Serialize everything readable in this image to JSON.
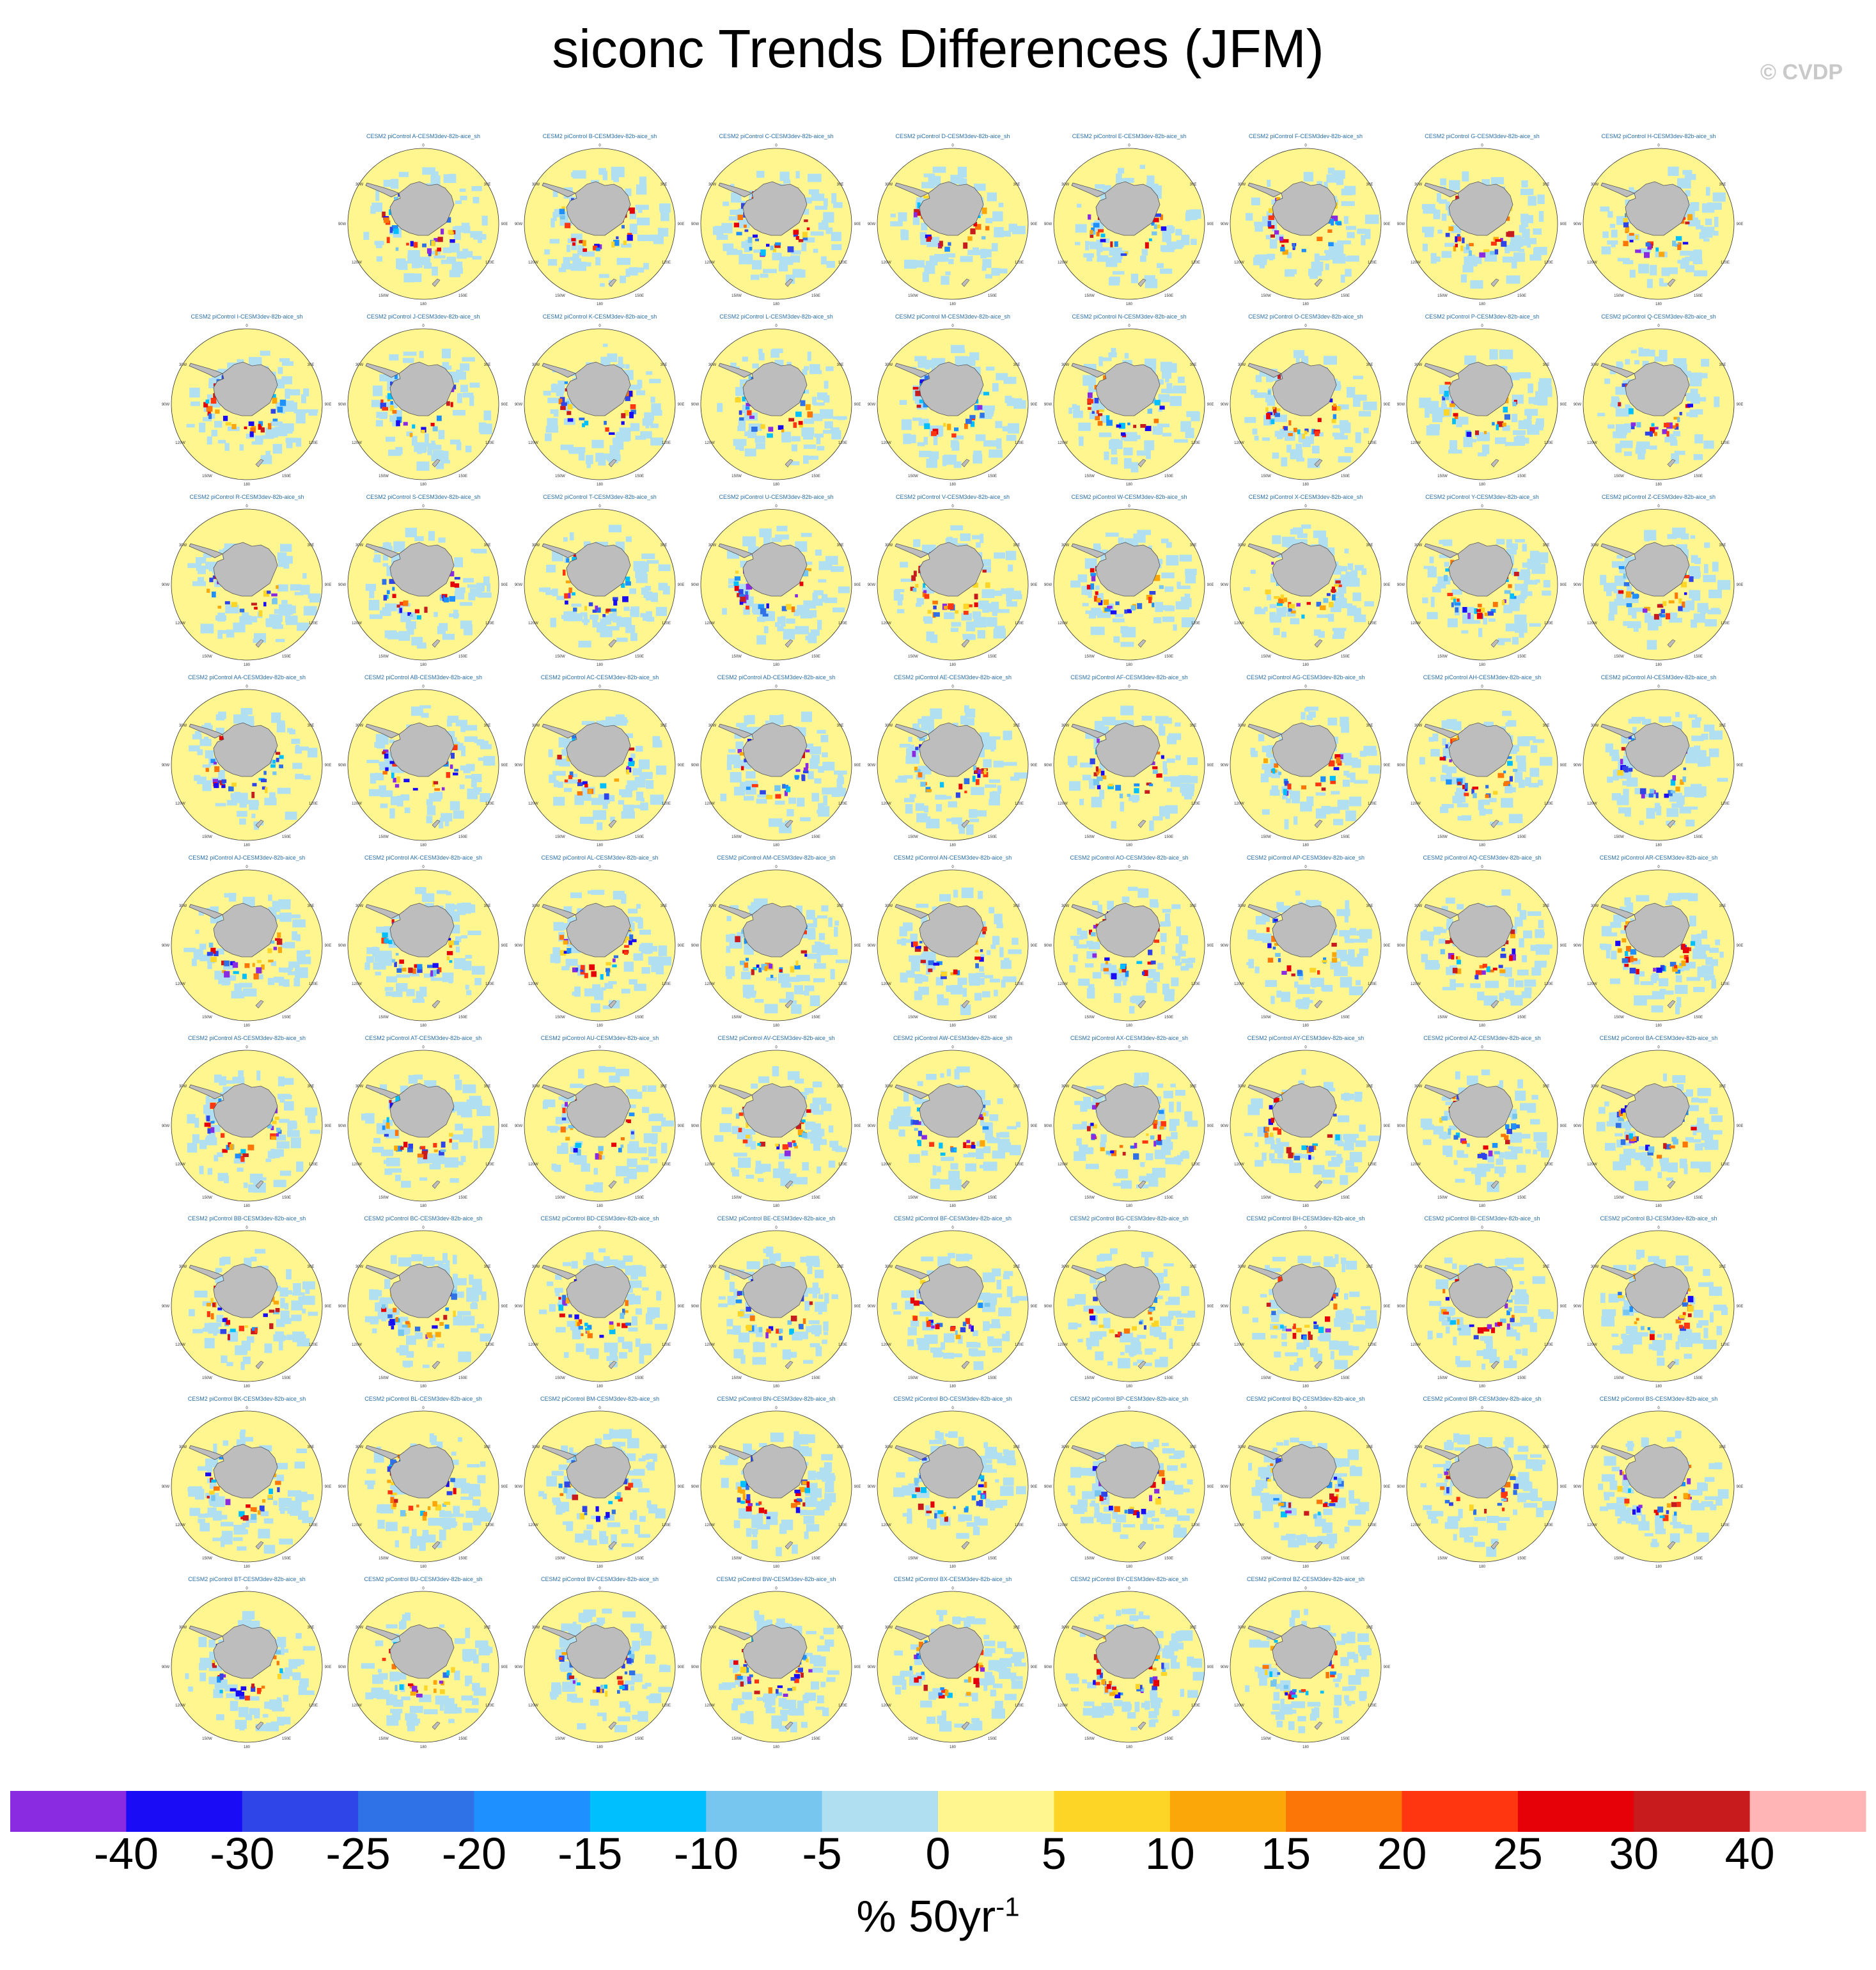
{
  "title": "siconc Trends Differences (JFM)",
  "credit": "© CVDP",
  "panel_title_prefix": "CESM2 piControl ",
  "panel_title_suffix": "-CESM3dev-82b-aice_sh",
  "panel_rows": [
    [
      "A",
      "B",
      "C",
      "D",
      "E",
      "F",
      "G",
      "H"
    ],
    [
      "I",
      "J",
      "K",
      "L",
      "M",
      "N",
      "O",
      "P",
      "Q"
    ],
    [
      "R",
      "S",
      "T",
      "U",
      "V",
      "W",
      "X",
      "Y",
      "Z"
    ],
    [
      "AA",
      "AB",
      "AC",
      "AD",
      "AE",
      "AF",
      "AG",
      "AH",
      "AI"
    ],
    [
      "AJ",
      "AK",
      "AL",
      "AM",
      "AN",
      "AO",
      "AP",
      "AQ",
      "AR"
    ],
    [
      "AS",
      "AT",
      "AU",
      "AV",
      "AW",
      "AX",
      "AY",
      "AZ",
      "BA"
    ],
    [
      "BB",
      "BC",
      "BD",
      "BE",
      "BF",
      "BG",
      "BH",
      "BI",
      "BJ"
    ],
    [
      "BK",
      "BL",
      "BM",
      "BN",
      "BO",
      "BP",
      "BQ",
      "BR",
      "BS"
    ],
    [
      "BT",
      "BU",
      "BV",
      "BW",
      "BX",
      "BY",
      "BZ"
    ]
  ],
  "map_labels": {
    "top": "0",
    "bottom": "180",
    "upper_left": "30W",
    "upper_right": "30E",
    "left": "90W",
    "right": "90E",
    "lower_left": "120W",
    "lower_right": "120E",
    "bottom_left": "150W",
    "bottom_right": "150E"
  },
  "colorbar": {
    "colors": [
      "#8a2be2",
      "#1a0cf5",
      "#2f45e8",
      "#2f72e8",
      "#1e90ff",
      "#00bfff",
      "#76c6f0",
      "#b0dff2",
      "#fff68f",
      "#fdd526",
      "#fba70a",
      "#fc7507",
      "#ff3610",
      "#e60008",
      "#c71b1e",
      "#ffb5b5"
    ],
    "labels": [
      "-40",
      "-30",
      "-25",
      "-20",
      "-15",
      "-10",
      "-5",
      "0",
      "5",
      "10",
      "15",
      "20",
      "25",
      "30",
      "40"
    ],
    "units_text": "% 50yr",
    "units_superscript": "-1"
  }
}
